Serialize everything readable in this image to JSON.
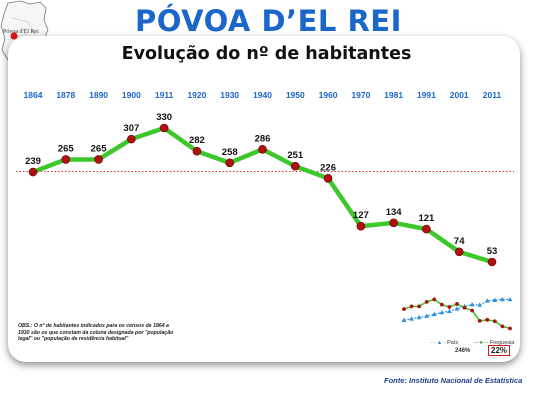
{
  "header": {
    "title": "PÓVOA D’EL REI",
    "map_label": "Póvoa d'El Rei"
  },
  "chart_data": {
    "type": "line",
    "title": "Evolução do nº de habitantes",
    "x": [
      "1864",
      "1878",
      "1890",
      "1900",
      "1911",
      "1920",
      "1930",
      "1940",
      "1950",
      "1960",
      "1970",
      "1981",
      "1991",
      "2001",
      "2011"
    ],
    "series": [
      {
        "values": [
          239,
          265,
          265,
          307,
          330,
          282,
          258,
          286,
          251,
          226,
          127,
          134,
          121,
          74,
          53
        ]
      }
    ],
    "reference_line": {
      "value": 240,
      "style": "dotted",
      "color": "#e03030"
    },
    "ylim": [
      40,
      340
    ],
    "grid": false,
    "colors": {
      "line": "#3cc82a",
      "marker": "#b01010",
      "year_labels": "#1a66c9"
    }
  },
  "note": "OBS.: O nº de habitantes indicados para os censos de 1864 a 1930 são os que constam da coluna designada por \"população legal\" ou \"população de residência habitual\"",
  "mini_chart": {
    "type": "line",
    "series": [
      {
        "name": "País",
        "values": [
          40,
          44,
          48,
          52,
          57,
          62,
          66,
          73,
          80,
          85,
          84,
          96,
          98,
          100,
          100
        ],
        "color": "#2f8fe0"
      },
      {
        "name": "Freguesia",
        "values": [
          72,
          80,
          80,
          93,
          100,
          85,
          78,
          87,
          76,
          68,
          38,
          41,
          37,
          22,
          16
        ],
        "color": "#b01010"
      }
    ],
    "ylim": [
      0,
      110
    ],
    "pct_pais": "246%",
    "pct_freguesia": "22%"
  },
  "source": "Fonte: Instituto Nacional de Estatística"
}
